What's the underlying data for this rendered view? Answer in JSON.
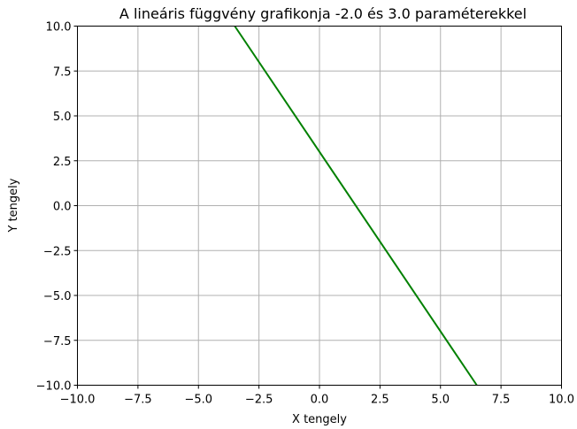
{
  "chart_data": {
    "type": "line",
    "title": "A lineáris függvény grafikonja -2.0 és 3.0 paraméterekkel",
    "xlabel": "X tengely",
    "ylabel": "Y tengely",
    "xlim": [
      -10,
      10
    ],
    "ylim": [
      -10,
      10
    ],
    "grid": true,
    "xticks": [
      -10,
      -7.5,
      -5,
      -2.5,
      0,
      2.5,
      5,
      7.5,
      10
    ],
    "yticks": [
      -10,
      -7.5,
      -5,
      -2.5,
      0,
      2.5,
      5,
      7.5,
      10
    ],
    "xtick_labels": [
      "−10.0",
      "−7.5",
      "−5.0",
      "−2.5",
      "0.0",
      "2.5",
      "5.0",
      "7.5",
      "10.0"
    ],
    "ytick_labels": [
      "−10.0",
      "−7.5",
      "−5.0",
      "−2.5",
      "0.0",
      "2.5",
      "5.0",
      "7.5",
      "10.0"
    ],
    "series": [
      {
        "color": "#008000",
        "x": [
          -3.5,
          6.5
        ],
        "y": [
          10,
          -10
        ]
      }
    ]
  }
}
